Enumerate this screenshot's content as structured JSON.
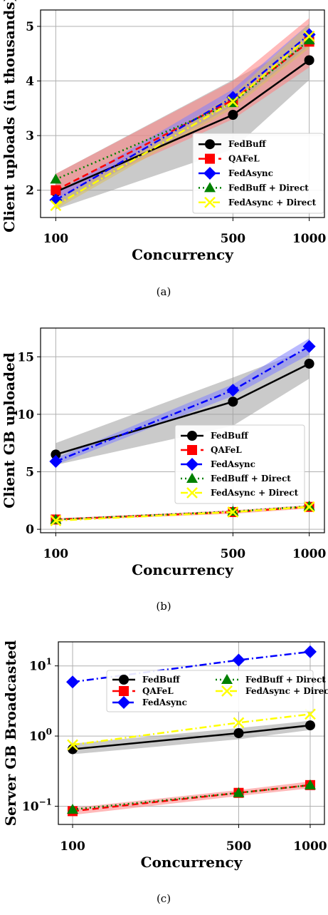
{
  "colors": {
    "FedBuff": "#000000",
    "QAFeL": "#ff0000",
    "FedAsync": "#0000ff",
    "FedBuff + Direct": "#008000",
    "FedAsync + Direct": "#ffff00",
    "band_FedBuff": "#9e9e9e",
    "band_QAFeL": "#ff8080",
    "band_FedAsync": "#8080ff",
    "band_FedAsyncDirect": "#d8c060"
  },
  "chart_data": [
    {
      "type": "line",
      "caption": "(a)",
      "xlabel": "Concurrency",
      "ylabel": "Client uploads (in thousands)",
      "x": [
        "100",
        "500",
        "1000"
      ],
      "xscale": "log",
      "yscale": "linear",
      "ylim": [
        1.5,
        5.3
      ],
      "yticks": [
        2,
        3,
        4,
        5
      ],
      "ytick_labels": [
        "2",
        "3",
        "4",
        "5"
      ],
      "grid": true,
      "legend": "bottom-right",
      "legend_cols": 1,
      "series": [
        {
          "name": "FedBuff",
          "key": "FedBuff",
          "values": [
            1.97,
            3.38,
            4.38
          ],
          "band": [
            [
              1.65,
              2.3
            ],
            [
              2.75,
              4.02
            ],
            [
              4.02,
              4.75
            ]
          ],
          "marker": "circle",
          "dash": "solid"
        },
        {
          "name": "QAFeL",
          "key": "QAFeL",
          "values": [
            2.0,
            3.65,
            4.72
          ],
          "band": [
            [
              1.85,
              2.3
            ],
            [
              3.3,
              4.0
            ],
            [
              4.25,
              5.15
            ]
          ],
          "marker": "square",
          "dash": "dashed"
        },
        {
          "name": "FedAsync",
          "key": "FedAsync",
          "values": [
            1.82,
            3.7,
            4.85
          ],
          "band": [
            [
              1.7,
              1.95
            ],
            [
              3.55,
              3.85
            ],
            [
              4.65,
              5.05
            ]
          ],
          "marker": "diamond",
          "dash": "dashdot"
        },
        {
          "name": "FedBuff + Direct",
          "key": "FedBuff + Direct",
          "values": [
            2.2,
            3.6,
            4.75
          ],
          "band": null,
          "marker": "triangle",
          "dash": "dotted"
        },
        {
          "name": "FedAsync + Direct",
          "key": "FedAsync + Direct",
          "values": [
            1.72,
            3.62,
            4.82
          ],
          "band": [
            [
              1.65,
              1.8
            ],
            [
              3.5,
              3.75
            ],
            [
              4.6,
              5.05
            ]
          ],
          "marker": "x",
          "dash": "dashdot"
        }
      ]
    },
    {
      "type": "line",
      "caption": "(b)",
      "xlabel": "Concurrency",
      "ylabel": "Client GB uploaded",
      "x": [
        "100",
        "500",
        "1000"
      ],
      "xscale": "log",
      "yscale": "linear",
      "ylim": [
        -0.3,
        17.5
      ],
      "yticks": [
        0,
        5,
        10,
        15
      ],
      "ytick_labels": [
        "0",
        "5",
        "10",
        "15"
      ],
      "grid": true,
      "legend": "center-right",
      "legend_cols": 1,
      "series": [
        {
          "name": "FedBuff",
          "key": "FedBuff",
          "values": [
            6.5,
            11.1,
            14.4
          ],
          "band": [
            [
              5.6,
              7.5
            ],
            [
              9.0,
              13.2
            ],
            [
              13.1,
              15.7
            ]
          ],
          "marker": "circle",
          "dash": "solid"
        },
        {
          "name": "QAFeL",
          "key": "QAFeL",
          "values": [
            0.85,
            1.5,
            1.95
          ],
          "band": [
            [
              0.75,
              0.95
            ],
            [
              1.35,
              1.65
            ],
            [
              1.8,
              2.1
            ]
          ],
          "marker": "square",
          "dash": "dashed"
        },
        {
          "name": "FedAsync",
          "key": "FedAsync",
          "values": [
            5.9,
            12.1,
            15.9
          ],
          "band": [
            [
              5.6,
              6.2
            ],
            [
              11.6,
              12.6
            ],
            [
              15.2,
              16.6
            ]
          ],
          "marker": "diamond",
          "dash": "dashdot"
        },
        {
          "name": "FedBuff + Direct",
          "key": "FedBuff + Direct",
          "values": [
            0.85,
            1.55,
            2.0
          ],
          "band": null,
          "marker": "triangle",
          "dash": "dotted"
        },
        {
          "name": "FedAsync + Direct",
          "key": "FedAsync + Direct",
          "values": [
            0.75,
            1.5,
            1.95
          ],
          "band": null,
          "marker": "x",
          "dash": "dashdot"
        }
      ]
    },
    {
      "type": "line",
      "caption": "(c)",
      "xlabel": "Concurrency",
      "ylabel": "Server GB Broadcasted",
      "x": [
        "100",
        "500",
        "1000"
      ],
      "xscale": "log",
      "yscale": "log",
      "ylim": [
        0.055,
        22
      ],
      "yticks": [
        0.1,
        1,
        10
      ],
      "ytick_labels": [
        {
          "base": "10",
          "exp": "−1"
        },
        {
          "base": "10",
          "exp": "0"
        },
        {
          "base": "10",
          "exp": "1"
        }
      ],
      "grid": true,
      "legend": "upper-center",
      "legend_cols": 2,
      "series": [
        {
          "name": "FedBuff",
          "key": "FedBuff",
          "values": [
            0.65,
            1.1,
            1.42
          ],
          "band": [
            [
              0.55,
              0.78
            ],
            [
              0.9,
              1.3
            ],
            [
              1.22,
              1.65
            ]
          ],
          "marker": "circle",
          "dash": "solid"
        },
        {
          "name": "QAFeL",
          "key": "QAFeL",
          "values": [
            0.085,
            0.155,
            0.2
          ],
          "band": [
            [
              0.075,
              0.095
            ],
            [
              0.14,
              0.17
            ],
            [
              0.18,
              0.225
            ]
          ],
          "marker": "square",
          "dash": "dashed"
        },
        {
          "name": "FedAsync",
          "key": "FedAsync",
          "values": [
            5.9,
            12.1,
            15.9
          ],
          "band": null,
          "marker": "diamond",
          "dash": "dashdot"
        },
        {
          "name": "FedBuff + Direct",
          "key": "FedBuff + Direct",
          "values": [
            0.09,
            0.155,
            0.2
          ],
          "band": null,
          "marker": "triangle",
          "dash": "dotted"
        },
        {
          "name": "FedAsync + Direct",
          "key": "FedAsync + Direct",
          "values": [
            0.75,
            1.55,
            2.05
          ],
          "band": null,
          "marker": "x",
          "dash": "dashdot"
        }
      ]
    }
  ]
}
